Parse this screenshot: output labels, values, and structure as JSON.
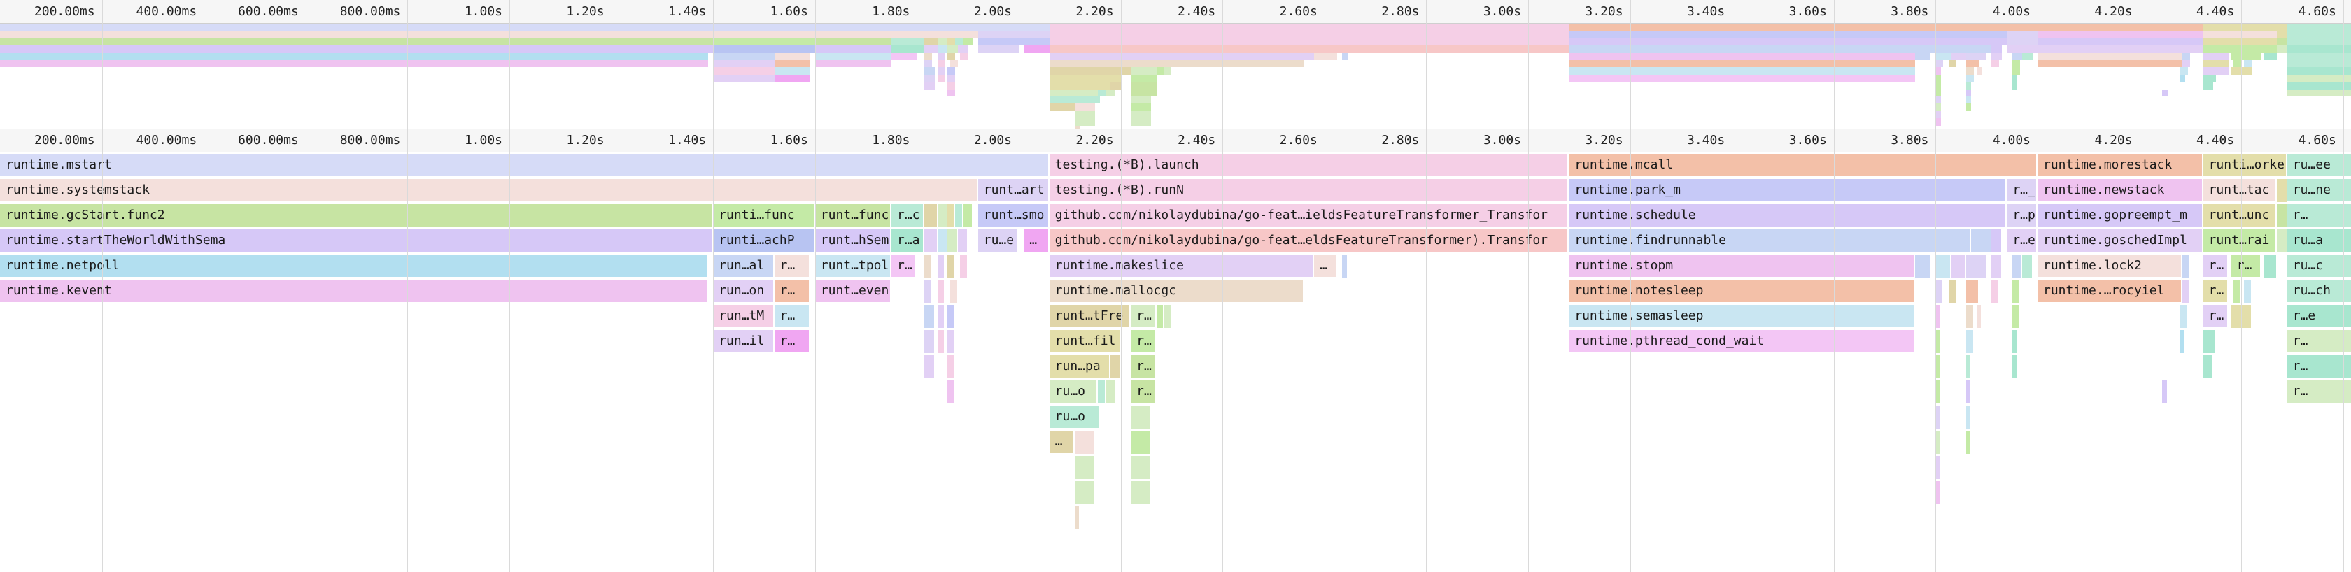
{
  "time_axis": {
    "ticks": [
      {
        "label": "200.00ms",
        "t": 0.2
      },
      {
        "label": "400.00ms",
        "t": 0.4
      },
      {
        "label": "600.00ms",
        "t": 0.6
      },
      {
        "label": "800.00ms",
        "t": 0.8
      },
      {
        "label": "1.00s",
        "t": 1.0
      },
      {
        "label": "1.20s",
        "t": 1.2
      },
      {
        "label": "1.40s",
        "t": 1.4
      },
      {
        "label": "1.60s",
        "t": 1.6
      },
      {
        "label": "1.80s",
        "t": 1.8
      },
      {
        "label": "2.00s",
        "t": 2.0
      },
      {
        "label": "2.20s",
        "t": 2.2
      },
      {
        "label": "2.40s",
        "t": 2.4
      },
      {
        "label": "2.60s",
        "t": 2.6
      },
      {
        "label": "2.80s",
        "t": 2.8
      },
      {
        "label": "3.00s",
        "t": 3.0
      },
      {
        "label": "3.20s",
        "t": 3.2
      },
      {
        "label": "3.40s",
        "t": 3.4
      },
      {
        "label": "3.60s",
        "t": 3.6
      },
      {
        "label": "3.80s",
        "t": 3.8
      },
      {
        "label": "4.00s",
        "t": 4.0
      },
      {
        "label": "4.20s",
        "t": 4.2
      },
      {
        "label": "4.40s",
        "t": 4.4
      },
      {
        "label": "4.60s",
        "t": 4.6
      }
    ]
  },
  "colors": {
    "blue": "#d6dbf7",
    "peach": "#f4e0dc",
    "green": "#c7e4a3",
    "purple": "#d6c8f7",
    "cyan": "#b2dff0",
    "pink": "#efc3f0",
    "rose": "#f5cfe6",
    "salmon": "#f7c7c7",
    "tan": "#ecdccb",
    "orange": "#f3c0a8",
    "periwinkle": "#c6c9f7",
    "lightblue": "#c8d6f4",
    "sky": "#c9e6f2",
    "magenta": "#f3c6f5",
    "olive": "#e3deaa",
    "khaki": "#e0d5a8",
    "mint": "#b9ead6",
    "lime": "#c4eaa6",
    "teal": "#a8e6cf",
    "lavender": "#e2d0f5",
    "strongblue": "#b8c4f2",
    "pinkstrong": "#f0a6f2",
    "greensoft": "#d5ecc4",
    "lilac": "#ddd3f5"
  },
  "flames": [
    {
      "text": "runtime.mstart",
      "t0": 0.0,
      "t1": 2.06,
      "d": 0,
      "c": "blue"
    },
    {
      "text": "runtime.systemstack",
      "t0": 0.0,
      "t1": 1.92,
      "d": 1,
      "c": "peach"
    },
    {
      "text": "runt…art",
      "t0": 1.92,
      "t1": 2.06,
      "d": 1,
      "c": "lilac"
    },
    {
      "text": "runtime.gcStart.func2",
      "t0": 0.0,
      "t1": 1.4,
      "d": 2,
      "c": "green"
    },
    {
      "text": "runti…func",
      "t0": 1.4,
      "t1": 1.6,
      "d": 2,
      "c": "lime"
    },
    {
      "text": "runt…func",
      "t0": 1.6,
      "t1": 1.75,
      "d": 2,
      "c": "green"
    },
    {
      "text": "r…c",
      "t0": 1.75,
      "t1": 1.815,
      "d": 2,
      "c": "mint"
    },
    {
      "text": "",
      "t0": 1.815,
      "t1": 1.84,
      "d": 2,
      "c": "khaki"
    },
    {
      "text": "",
      "t0": 1.84,
      "t1": 1.86,
      "d": 2,
      "c": "greensoft"
    },
    {
      "text": "",
      "t0": 1.86,
      "t1": 1.875,
      "d": 2,
      "c": "olive"
    },
    {
      "text": "",
      "t0": 1.875,
      "t1": 1.89,
      "d": 2,
      "c": "mint"
    },
    {
      "text": "",
      "t0": 1.89,
      "t1": 1.91,
      "d": 2,
      "c": "lime"
    },
    {
      "text": "runt…smo",
      "t0": 1.92,
      "t1": 2.06,
      "d": 2,
      "c": "periwinkle"
    },
    {
      "text": "runtime.startTheWorldWithSema",
      "t0": 0.0,
      "t1": 1.4,
      "d": 3,
      "c": "purple"
    },
    {
      "text": "runti…achP",
      "t0": 1.4,
      "t1": 1.6,
      "d": 3,
      "c": "strongblue"
    },
    {
      "text": "runt…hSem",
      "t0": 1.6,
      "t1": 1.75,
      "d": 3,
      "c": "purple"
    },
    {
      "text": "r…a",
      "t0": 1.75,
      "t1": 1.815,
      "d": 3,
      "c": "teal"
    },
    {
      "text": "",
      "t0": 1.815,
      "t1": 1.84,
      "d": 3,
      "c": "lavender"
    },
    {
      "text": "",
      "t0": 1.84,
      "t1": 1.86,
      "d": 3,
      "c": "sky"
    },
    {
      "text": "",
      "t0": 1.86,
      "t1": 1.88,
      "d": 3,
      "c": "greensoft"
    },
    {
      "text": "",
      "t0": 1.88,
      "t1": 1.9,
      "d": 3,
      "c": "lavender"
    },
    {
      "text": "ru…e",
      "t0": 1.92,
      "t1": 2.0,
      "d": 3,
      "c": "lilac"
    },
    {
      "text": "…",
      "t0": 2.01,
      "t1": 2.06,
      "d": 3,
      "c": "pinkstrong"
    },
    {
      "text": "runtime.netpoll",
      "t0": 0.0,
      "t1": 1.39,
      "d": 4,
      "c": "cyan"
    },
    {
      "text": "run…al",
      "t0": 1.4,
      "t1": 1.52,
      "d": 4,
      "c": "lightblue"
    },
    {
      "text": "r…",
      "t0": 1.52,
      "t1": 1.59,
      "d": 4,
      "c": "peach"
    },
    {
      "text": "runt…tpol",
      "t0": 1.6,
      "t1": 1.75,
      "d": 4,
      "c": "sky"
    },
    {
      "text": "r…",
      "t0": 1.75,
      "t1": 1.8,
      "d": 4,
      "c": "magenta"
    },
    {
      "text": "",
      "t0": 1.815,
      "t1": 1.83,
      "d": 4,
      "c": "tan"
    },
    {
      "text": "",
      "t0": 1.84,
      "t1": 1.855,
      "d": 4,
      "c": "lavender"
    },
    {
      "text": "",
      "t0": 1.86,
      "t1": 1.875,
      "d": 4,
      "c": "khaki"
    },
    {
      "text": "",
      "t0": 1.885,
      "t1": 1.9,
      "d": 4,
      "c": "rose"
    },
    {
      "text": "runtime.kevent",
      "t0": 0.0,
      "t1": 1.39,
      "d": 5,
      "c": "pink"
    },
    {
      "text": "run…on",
      "t0": 1.4,
      "t1": 1.52,
      "d": 5,
      "c": "lavender"
    },
    {
      "text": "r…",
      "t0": 1.52,
      "t1": 1.59,
      "d": 5,
      "c": "orange"
    },
    {
      "text": "runt…even",
      "t0": 1.6,
      "t1": 1.75,
      "d": 5,
      "c": "pink"
    },
    {
      "text": "",
      "t0": 1.815,
      "t1": 1.83,
      "d": 5,
      "c": "lilac"
    },
    {
      "text": "",
      "t0": 1.84,
      "t1": 1.855,
      "d": 5,
      "c": "rose"
    },
    {
      "text": "",
      "t0": 1.865,
      "t1": 1.88,
      "d": 5,
      "c": "peach"
    },
    {
      "text": "run…tM",
      "t0": 1.4,
      "t1": 1.52,
      "d": 6,
      "c": "rose"
    },
    {
      "text": "r…",
      "t0": 1.52,
      "t1": 1.59,
      "d": 6,
      "c": "sky"
    },
    {
      "text": "",
      "t0": 1.815,
      "t1": 1.835,
      "d": 6,
      "c": "lightblue"
    },
    {
      "text": "",
      "t0": 1.84,
      "t1": 1.855,
      "d": 6,
      "c": "lavender"
    },
    {
      "text": "",
      "t0": 1.86,
      "t1": 1.875,
      "d": 6,
      "c": "periwinkle"
    },
    {
      "text": "run…il",
      "t0": 1.4,
      "t1": 1.52,
      "d": 7,
      "c": "lavender"
    },
    {
      "text": "r…",
      "t0": 1.52,
      "t1": 1.59,
      "d": 7,
      "c": "pinkstrong"
    },
    {
      "text": "",
      "t0": 1.815,
      "t1": 1.835,
      "d": 7,
      "c": "lilac"
    },
    {
      "text": "",
      "t0": 1.84,
      "t1": 1.855,
      "d": 7,
      "c": "rose"
    },
    {
      "text": "",
      "t0": 1.86,
      "t1": 1.875,
      "d": 7,
      "c": "lavender"
    },
    {
      "text": "",
      "t0": 1.815,
      "t1": 1.835,
      "d": 8,
      "c": "lavender"
    },
    {
      "text": "",
      "t0": 1.86,
      "t1": 1.875,
      "d": 8,
      "c": "rose"
    },
    {
      "text": "",
      "t0": 1.86,
      "t1": 1.875,
      "d": 9,
      "c": "pink"
    },
    {
      "text": "testing.(*B).launch",
      "t0": 2.06,
      "t1": 3.08,
      "d": 0,
      "c": "rose"
    },
    {
      "text": "testing.(*B).runN",
      "t0": 2.06,
      "t1": 3.08,
      "d": 1,
      "c": "rose"
    },
    {
      "text": "github.com/nikolaydubina/go-feat…ieldsFeatureTransformer_Transfor",
      "t0": 2.06,
      "t1": 3.08,
      "d": 2,
      "c": "rose"
    },
    {
      "text": "github.com/nikolaydubina/go-feat…eldsFeatureTransformer).Transfor",
      "t0": 2.06,
      "t1": 3.08,
      "d": 3,
      "c": "salmon"
    },
    {
      "text": "runtime.makeslice",
      "t0": 2.06,
      "t1": 2.58,
      "d": 4,
      "c": "lavender"
    },
    {
      "text": "…",
      "t0": 2.58,
      "t1": 2.625,
      "d": 4,
      "c": "peach"
    },
    {
      "text": "",
      "t0": 2.635,
      "t1": 2.645,
      "d": 4,
      "c": "lightblue"
    },
    {
      "text": "runtime.mallocgc",
      "t0": 2.06,
      "t1": 2.56,
      "d": 5,
      "c": "tan"
    },
    {
      "text": "runt…tFre",
      "t0": 2.06,
      "t1": 2.22,
      "d": 6,
      "c": "khaki"
    },
    {
      "text": "r…",
      "t0": 2.22,
      "t1": 2.27,
      "d": 6,
      "c": "greensoft"
    },
    {
      "text": "",
      "t0": 2.27,
      "t1": 2.285,
      "d": 6,
      "c": "lime"
    },
    {
      "text": "",
      "t0": 2.285,
      "t1": 2.3,
      "d": 6,
      "c": "greensoft"
    },
    {
      "text": "runt…fil",
      "t0": 2.06,
      "t1": 2.2,
      "d": 7,
      "c": "olive"
    },
    {
      "text": "r…",
      "t0": 2.22,
      "t1": 2.27,
      "d": 7,
      "c": "lime"
    },
    {
      "text": "run…pa",
      "t0": 2.06,
      "t1": 2.18,
      "d": 8,
      "c": "olive"
    },
    {
      "text": "",
      "t0": 2.18,
      "t1": 2.2,
      "d": 8,
      "c": "khaki"
    },
    {
      "text": "r…",
      "t0": 2.22,
      "t1": 2.27,
      "d": 8,
      "c": "green"
    },
    {
      "text": "ru…o",
      "t0": 2.06,
      "t1": 2.155,
      "d": 9,
      "c": "greensoft"
    },
    {
      "text": "",
      "t0": 2.155,
      "t1": 2.17,
      "d": 9,
      "c": "mint"
    },
    {
      "text": "",
      "t0": 2.17,
      "t1": 2.19,
      "d": 9,
      "c": "greensoft"
    },
    {
      "text": "r…",
      "t0": 2.22,
      "t1": 2.27,
      "d": 9,
      "c": "green"
    },
    {
      "text": "ru…o",
      "t0": 2.06,
      "t1": 2.16,
      "d": 10,
      "c": "mint"
    },
    {
      "text": "",
      "t0": 2.22,
      "t1": 2.26,
      "d": 10,
      "c": "greensoft"
    },
    {
      "text": "…",
      "t0": 2.06,
      "t1": 2.11,
      "d": 11,
      "c": "khaki"
    },
    {
      "text": "",
      "t0": 2.11,
      "t1": 2.15,
      "d": 11,
      "c": "peach"
    },
    {
      "text": "",
      "t0": 2.22,
      "t1": 2.26,
      "d": 11,
      "c": "lime"
    },
    {
      "text": "",
      "t0": 2.11,
      "t1": 2.15,
      "d": 12,
      "c": "greensoft"
    },
    {
      "text": "",
      "t0": 2.22,
      "t1": 2.26,
      "d": 12,
      "c": "greensoft"
    },
    {
      "text": "",
      "t0": 2.11,
      "t1": 2.15,
      "d": 13,
      "c": "greensoft"
    },
    {
      "text": "",
      "t0": 2.22,
      "t1": 2.26,
      "d": 13,
      "c": "greensoft"
    },
    {
      "text": "",
      "t0": 2.11,
      "t1": 2.12,
      "d": 14,
      "c": "tan"
    },
    {
      "text": "runtime.mcall",
      "t0": 3.08,
      "t1": 4.0,
      "d": 0,
      "c": "orange"
    },
    {
      "text": "runtime.park_m",
      "t0": 3.08,
      "t1": 3.94,
      "d": 1,
      "c": "periwinkle"
    },
    {
      "text": "r…_",
      "t0": 3.94,
      "t1": 4.0,
      "d": 1,
      "c": "lilac"
    },
    {
      "text": "runtime.schedule",
      "t0": 3.08,
      "t1": 3.94,
      "d": 2,
      "c": "purple"
    },
    {
      "text": "r…p",
      "t0": 3.94,
      "t1": 4.0,
      "d": 2,
      "c": "lilac"
    },
    {
      "text": "runtime.findrunnable",
      "t0": 3.08,
      "t1": 3.87,
      "d": 3,
      "c": "lightblue"
    },
    {
      "text": "",
      "t0": 3.87,
      "t1": 3.91,
      "d": 3,
      "c": "lightblue"
    },
    {
      "text": "",
      "t0": 3.91,
      "t1": 3.93,
      "d": 3,
      "c": "purple"
    },
    {
      "text": "r…e",
      "t0": 3.94,
      "t1": 4.0,
      "d": 3,
      "c": "lavender"
    },
    {
      "text": "runtime.stopm",
      "t0": 3.08,
      "t1": 3.76,
      "d": 4,
      "c": "pink"
    },
    {
      "text": "",
      "t0": 3.76,
      "t1": 3.79,
      "d": 4,
      "c": "lightblue"
    },
    {
      "text": "",
      "t0": 3.8,
      "t1": 3.83,
      "d": 4,
      "c": "sky"
    },
    {
      "text": "",
      "t0": 3.83,
      "t1": 3.86,
      "d": 4,
      "c": "lavender"
    },
    {
      "text": "",
      "t0": 3.86,
      "t1": 3.9,
      "d": 4,
      "c": "lilac"
    },
    {
      "text": "",
      "t0": 3.91,
      "t1": 3.93,
      "d": 4,
      "c": "lavender"
    },
    {
      "text": "",
      "t0": 3.95,
      "t1": 3.97,
      "d": 4,
      "c": "lightblue"
    },
    {
      "text": "",
      "t0": 3.97,
      "t1": 3.99,
      "d": 4,
      "c": "mint"
    },
    {
      "text": "runtime.notesleep",
      "t0": 3.08,
      "t1": 3.76,
      "d": 5,
      "c": "orange"
    },
    {
      "text": "",
      "t0": 3.8,
      "t1": 3.815,
      "d": 5,
      "c": "lilac"
    },
    {
      "text": "",
      "t0": 3.825,
      "t1": 3.84,
      "d": 5,
      "c": "khaki"
    },
    {
      "text": "",
      "t0": 3.86,
      "t1": 3.885,
      "d": 5,
      "c": "orange"
    },
    {
      "text": "",
      "t0": 3.91,
      "t1": 3.925,
      "d": 5,
      "c": "rose"
    },
    {
      "text": "",
      "t0": 3.95,
      "t1": 3.965,
      "d": 5,
      "c": "lime"
    },
    {
      "text": "runtime.semasleep",
      "t0": 3.08,
      "t1": 3.76,
      "d": 6,
      "c": "sky"
    },
    {
      "text": "",
      "t0": 3.8,
      "t1": 3.81,
      "d": 6,
      "c": "pink"
    },
    {
      "text": "",
      "t0": 3.86,
      "t1": 3.875,
      "d": 6,
      "c": "tan"
    },
    {
      "text": "",
      "t0": 3.88,
      "t1": 3.89,
      "d": 6,
      "c": "peach"
    },
    {
      "text": "",
      "t0": 3.95,
      "t1": 3.965,
      "d": 6,
      "c": "lime"
    },
    {
      "text": "runtime.pthread_cond_wait",
      "t0": 3.08,
      "t1": 3.76,
      "d": 7,
      "c": "magenta"
    },
    {
      "text": "",
      "t0": 3.8,
      "t1": 3.81,
      "d": 7,
      "c": "lime"
    },
    {
      "text": "",
      "t0": 3.86,
      "t1": 3.875,
      "d": 7,
      "c": "sky"
    },
    {
      "text": "",
      "t0": 3.95,
      "t1": 3.96,
      "d": 7,
      "c": "teal"
    },
    {
      "text": "",
      "t0": 3.8,
      "t1": 3.81,
      "d": 8,
      "c": "lime"
    },
    {
      "text": "",
      "t0": 3.86,
      "t1": 3.87,
      "d": 8,
      "c": "mint"
    },
    {
      "text": "",
      "t0": 3.95,
      "t1": 3.96,
      "d": 8,
      "c": "teal"
    },
    {
      "text": "",
      "t0": 3.8,
      "t1": 3.81,
      "d": 9,
      "c": "lime"
    },
    {
      "text": "",
      "t0": 3.86,
      "t1": 3.87,
      "d": 9,
      "c": "purple"
    },
    {
      "text": "",
      "t0": 3.8,
      "t1": 3.81,
      "d": 10,
      "c": "lilac"
    },
    {
      "text": "",
      "t0": 3.86,
      "t1": 3.87,
      "d": 10,
      "c": "sky"
    },
    {
      "text": "",
      "t0": 3.8,
      "t1": 3.81,
      "d": 11,
      "c": "greensoft"
    },
    {
      "text": "",
      "t0": 3.86,
      "t1": 3.87,
      "d": 11,
      "c": "lime"
    },
    {
      "text": "",
      "t0": 3.8,
      "t1": 3.81,
      "d": 12,
      "c": "lavender"
    },
    {
      "text": "",
      "t0": 3.8,
      "t1": 3.81,
      "d": 13,
      "c": "pink"
    },
    {
      "text": "runtime.morestack",
      "t0": 4.0,
      "t1": 4.325,
      "d": 0,
      "c": "orange"
    },
    {
      "text": "runti…orke",
      "t0": 4.325,
      "t1": 4.49,
      "d": 0,
      "c": "olive"
    },
    {
      "text": "ru…ee",
      "t0": 4.49,
      "t1": 4.62,
      "d": 0,
      "c": "mint"
    },
    {
      "text": "runtime.newstack",
      "t0": 4.0,
      "t1": 4.325,
      "d": 1,
      "c": "pink"
    },
    {
      "text": "runt…tac",
      "t0": 4.325,
      "t1": 4.47,
      "d": 1,
      "c": "peach"
    },
    {
      "text": "",
      "t0": 4.47,
      "t1": 4.49,
      "d": 1,
      "c": "olive"
    },
    {
      "text": "ru…ne",
      "t0": 4.49,
      "t1": 4.62,
      "d": 1,
      "c": "mint"
    },
    {
      "text": "runtime.gopreempt_m",
      "t0": 4.0,
      "t1": 4.325,
      "d": 2,
      "c": "purple"
    },
    {
      "text": "runt…unc",
      "t0": 4.325,
      "t1": 4.47,
      "d": 2,
      "c": "olive"
    },
    {
      "text": "",
      "t0": 4.47,
      "t1": 4.49,
      "d": 2,
      "c": "green"
    },
    {
      "text": "r…",
      "t0": 4.49,
      "t1": 4.62,
      "d": 2,
      "c": "mint"
    },
    {
      "text": "runtime.goschedImpl",
      "t0": 4.0,
      "t1": 4.325,
      "d": 3,
      "c": "lavender"
    },
    {
      "text": "runt…rai",
      "t0": 4.325,
      "t1": 4.47,
      "d": 3,
      "c": "lime"
    },
    {
      "text": "",
      "t0": 4.47,
      "t1": 4.49,
      "d": 3,
      "c": "greensoft"
    },
    {
      "text": "ru…a",
      "t0": 4.49,
      "t1": 4.62,
      "d": 3,
      "c": "teal"
    },
    {
      "text": "runtime.lock2",
      "t0": 4.0,
      "t1": 4.285,
      "d": 4,
      "c": "peach"
    },
    {
      "text": "",
      "t0": 4.285,
      "t1": 4.3,
      "d": 4,
      "c": "lightblue"
    },
    {
      "text": "r…",
      "t0": 4.325,
      "t1": 4.375,
      "d": 4,
      "c": "lavender"
    },
    {
      "text": "r…",
      "t0": 4.38,
      "t1": 4.44,
      "d": 4,
      "c": "lime"
    },
    {
      "text": "",
      "t0": 4.445,
      "t1": 4.47,
      "d": 4,
      "c": "teal"
    },
    {
      "text": "ru…c",
      "t0": 4.49,
      "t1": 4.62,
      "d": 4,
      "c": "mint"
    },
    {
      "text": "runtime.…rocyiel",
      "t0": 4.0,
      "t1": 4.285,
      "d": 5,
      "c": "orange"
    },
    {
      "text": "",
      "t0": 4.285,
      "t1": 4.3,
      "d": 5,
      "c": "lavender"
    },
    {
      "text": "r…",
      "t0": 4.325,
      "t1": 4.375,
      "d": 5,
      "c": "olive"
    },
    {
      "text": "",
      "t0": 4.385,
      "t1": 4.4,
      "d": 5,
      "c": "lime"
    },
    {
      "text": "",
      "t0": 4.405,
      "t1": 4.42,
      "d": 5,
      "c": "sky"
    },
    {
      "text": "ru…ch",
      "t0": 4.49,
      "t1": 4.62,
      "d": 5,
      "c": "mint"
    },
    {
      "text": "",
      "t0": 4.28,
      "t1": 4.295,
      "d": 6,
      "c": "sky"
    },
    {
      "text": "r…",
      "t0": 4.325,
      "t1": 4.375,
      "d": 6,
      "c": "lavender"
    },
    {
      "text": "",
      "t0": 4.38,
      "t1": 4.42,
      "d": 6,
      "c": "olive"
    },
    {
      "text": "r…e",
      "t0": 4.49,
      "t1": 4.62,
      "d": 6,
      "c": "teal"
    },
    {
      "text": "",
      "t0": 4.28,
      "t1": 4.29,
      "d": 7,
      "c": "cyan"
    },
    {
      "text": "",
      "t0": 4.325,
      "t1": 4.35,
      "d": 7,
      "c": "teal"
    },
    {
      "text": "r…",
      "t0": 4.49,
      "t1": 4.62,
      "d": 7,
      "c": "greensoft"
    },
    {
      "text": "",
      "t0": 4.325,
      "t1": 4.345,
      "d": 8,
      "c": "teal"
    },
    {
      "text": "r…",
      "t0": 4.49,
      "t1": 4.62,
      "d": 8,
      "c": "teal"
    },
    {
      "text": "",
      "t0": 4.245,
      "t1": 4.255,
      "d": 9,
      "c": "purple"
    },
    {
      "text": "r…",
      "t0": 4.49,
      "t1": 4.62,
      "d": 9,
      "c": "greensoft"
    }
  ]
}
